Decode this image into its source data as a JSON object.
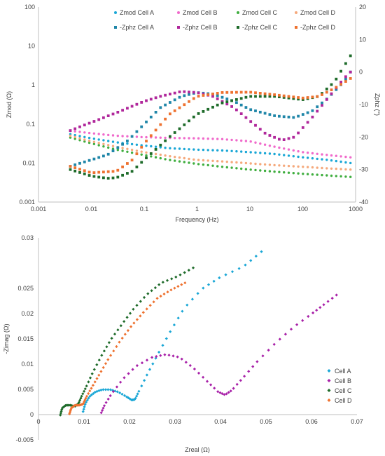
{
  "chart_data": [
    {
      "type": "scatter",
      "title": "",
      "xlabel": "Frequency (Hz)",
      "ylabel": "Zmod (Ω)",
      "y2label": "Zphz (°)",
      "x_scale": "log",
      "y_scale": "log",
      "xlim": [
        0.001,
        1000
      ],
      "ylim": [
        0.001,
        100
      ],
      "y2lim": [
        -40,
        20
      ],
      "xticks": [
        "0.001",
        "0.01",
        "0.1",
        "1",
        "10",
        "100",
        "1000"
      ],
      "yticks": [
        "0.001",
        "0.01",
        "0.1",
        "1",
        "10",
        "100"
      ],
      "y2ticks": [
        "-40",
        "-30",
        "-20",
        "-10",
        "0",
        "10",
        "20"
      ],
      "grid": false,
      "legend_position": "top",
      "series": [
        {
          "name": "Zmod Cell A",
          "marker": "circle",
          "color": "#1aa7d6",
          "axis": "left",
          "points": [
            [
              0.004,
              0.055
            ],
            [
              0.01,
              0.043
            ],
            [
              0.03,
              0.034
            ],
            [
              0.1,
              0.028
            ],
            [
              0.3,
              0.024
            ],
            [
              1,
              0.022
            ],
            [
              3,
              0.021
            ],
            [
              10,
              0.019
            ],
            [
              30,
              0.017
            ],
            [
              100,
              0.014
            ],
            [
              300,
              0.012
            ],
            [
              800,
              0.01
            ]
          ]
        },
        {
          "name": "Zmod Cell B",
          "marker": "circle",
          "color": "#f06acb",
          "axis": "left",
          "points": [
            [
              0.004,
              0.067
            ],
            [
              0.01,
              0.058
            ],
            [
              0.03,
              0.05
            ],
            [
              0.1,
              0.046
            ],
            [
              0.3,
              0.044
            ],
            [
              1,
              0.043
            ],
            [
              3,
              0.041
            ],
            [
              10,
              0.036
            ],
            [
              30,
              0.026
            ],
            [
              100,
              0.019
            ],
            [
              300,
              0.016
            ],
            [
              800,
              0.014
            ]
          ]
        },
        {
          "name": "Zmod Cell C",
          "marker": "circle",
          "color": "#3fae3f",
          "axis": "left",
          "points": [
            [
              0.004,
              0.045
            ],
            [
              0.01,
              0.032
            ],
            [
              0.03,
              0.022
            ],
            [
              0.1,
              0.016
            ],
            [
              0.3,
              0.012
            ],
            [
              1,
              0.0095
            ],
            [
              3,
              0.008
            ],
            [
              10,
              0.0068
            ],
            [
              30,
              0.006
            ],
            [
              100,
              0.0053
            ],
            [
              300,
              0.0048
            ],
            [
              800,
              0.0044
            ]
          ]
        },
        {
          "name": "Zmod Cell D",
          "marker": "circle",
          "color": "#f5a97c",
          "axis": "left",
          "points": [
            [
              0.004,
              0.05
            ],
            [
              0.01,
              0.036
            ],
            [
              0.03,
              0.026
            ],
            [
              0.1,
              0.019
            ],
            [
              0.3,
              0.015
            ],
            [
              1,
              0.012
            ],
            [
              3,
              0.011
            ],
            [
              10,
              0.0098
            ],
            [
              30,
              0.0088
            ],
            [
              100,
              0.008
            ],
            [
              300,
              0.0073
            ],
            [
              800,
              0.0068
            ]
          ]
        },
        {
          "name": "-Zphz Cell A",
          "marker": "square",
          "color": "#1f86a8",
          "axis": "right",
          "points": [
            [
              0.004,
              -29
            ],
            [
              0.01,
              -27
            ],
            [
              0.02,
              -25.5
            ],
            [
              0.05,
              -21
            ],
            [
              0.1,
              -16
            ],
            [
              0.2,
              -11
            ],
            [
              0.5,
              -7.5
            ],
            [
              1,
              -6.3
            ],
            [
              2,
              -6.8
            ],
            [
              5,
              -9
            ],
            [
              10,
              -11.5
            ],
            [
              30,
              -13.5
            ],
            [
              70,
              -14
            ],
            [
              150,
              -12
            ],
            [
              300,
              -8
            ],
            [
              600,
              -3
            ],
            [
              800,
              0
            ]
          ]
        },
        {
          "name": "-Zphz Cell B",
          "marker": "square",
          "color": "#b0279b",
          "axis": "right",
          "points": [
            [
              0.004,
              -18
            ],
            [
              0.01,
              -15.5
            ],
            [
              0.03,
              -12.5
            ],
            [
              0.1,
              -9
            ],
            [
              0.2,
              -7.5
            ],
            [
              0.5,
              -6
            ],
            [
              1,
              -6.3
            ],
            [
              2,
              -7.5
            ],
            [
              5,
              -11
            ],
            [
              10,
              -15
            ],
            [
              20,
              -19
            ],
            [
              40,
              -21
            ],
            [
              70,
              -20
            ],
            [
              150,
              -14
            ],
            [
              300,
              -8
            ],
            [
              600,
              -2
            ],
            [
              800,
              0
            ]
          ]
        },
        {
          "name": "-Zphz Cell C",
          "marker": "square",
          "color": "#1e6b2a",
          "axis": "right",
          "points": [
            [
              0.004,
              -30
            ],
            [
              0.01,
              -32
            ],
            [
              0.02,
              -32.7
            ],
            [
              0.03,
              -32.5
            ],
            [
              0.06,
              -30.5
            ],
            [
              0.1,
              -27
            ],
            [
              0.3,
              -20
            ],
            [
              1,
              -13
            ],
            [
              3,
              -9.5
            ],
            [
              10,
              -7.5
            ],
            [
              30,
              -7.5
            ],
            [
              100,
              -8.5
            ],
            [
              200,
              -7.5
            ],
            [
              400,
              -3
            ],
            [
              800,
              5
            ]
          ]
        },
        {
          "name": "-Zphz Cell D",
          "marker": "square",
          "color": "#ee7230",
          "axis": "right",
          "points": [
            [
              0.004,
              -29
            ],
            [
              0.01,
              -31
            ],
            [
              0.03,
              -30.5
            ],
            [
              0.06,
              -27
            ],
            [
              0.1,
              -22
            ],
            [
              0.3,
              -13
            ],
            [
              1,
              -7.5
            ],
            [
              3,
              -6.3
            ],
            [
              10,
              -6.2
            ],
            [
              30,
              -7
            ],
            [
              100,
              -8
            ],
            [
              200,
              -7.5
            ],
            [
              400,
              -5
            ],
            [
              800,
              -2
            ]
          ]
        }
      ]
    },
    {
      "type": "scatter",
      "title": "",
      "xlabel": "Zreal (Ω)",
      "ylabel": "-Zimag (Ω)",
      "xlim": [
        0,
        0.07
      ],
      "ylim": [
        -0.005,
        0.03
      ],
      "xticks": [
        "0",
        "0.01",
        "0.02",
        "0.03",
        "0.04",
        "0.05",
        "0.06",
        "0.07"
      ],
      "yticks": [
        "-0.005",
        "0",
        "0.005",
        "0.01",
        "0.015",
        "0.02",
        "0.025",
        "0.03"
      ],
      "grid": false,
      "legend_position": "right",
      "series": [
        {
          "name": "Cell A",
          "marker": "diamond",
          "color": "#1aa7d6",
          "points": [
            [
              0.0098,
              -0.0001
            ],
            [
              0.0103,
              0.0013
            ],
            [
              0.0112,
              0.0025
            ],
            [
              0.0125,
              0.0033
            ],
            [
              0.014,
              0.0037
            ],
            [
              0.0158,
              0.0037
            ],
            [
              0.0175,
              0.0033
            ],
            [
              0.0193,
              0.0025
            ],
            [
              0.0205,
              0.0019
            ],
            [
              0.0212,
              0.002
            ],
            [
              0.022,
              0.0033
            ],
            [
              0.024,
              0.0065
            ],
            [
              0.0262,
              0.0098
            ],
            [
              0.029,
              0.0138
            ],
            [
              0.032,
              0.0178
            ],
            [
              0.036,
              0.0212
            ],
            [
              0.04,
              0.0232
            ],
            [
              0.045,
              0.025
            ],
            [
              0.049,
              0.0276
            ]
          ]
        },
        {
          "name": "Cell B",
          "marker": "diamond",
          "color": "#a820a8",
          "points": [
            [
              0.0138,
              -0.0003
            ],
            [
              0.0145,
              0.001
            ],
            [
              0.016,
              0.0029
            ],
            [
              0.0185,
              0.0055
            ],
            [
              0.0215,
              0.0078
            ],
            [
              0.025,
              0.0093
            ],
            [
              0.028,
              0.0098
            ],
            [
              0.031,
              0.0093
            ],
            [
              0.034,
              0.0075
            ],
            [
              0.037,
              0.0052
            ],
            [
              0.0395,
              0.0033
            ],
            [
              0.041,
              0.0028
            ],
            [
              0.0425,
              0.0036
            ],
            [
              0.045,
              0.0058
            ],
            [
              0.048,
              0.0085
            ],
            [
              0.052,
              0.0117
            ],
            [
              0.056,
              0.0145
            ],
            [
              0.06,
              0.0168
            ],
            [
              0.0625,
              0.0183
            ],
            [
              0.0655,
              0.0201
            ]
          ]
        },
        {
          "name": "Cell C",
          "marker": "diamond",
          "color": "#1e6b2a",
          "points": [
            [
              0.0048,
              -0.0007
            ],
            [
              0.0052,
              0.0005
            ],
            [
              0.006,
              0.001
            ],
            [
              0.007,
              0.001
            ],
            [
              0.008,
              0.0008
            ],
            [
              0.0088,
              0.0013
            ],
            [
              0.0095,
              0.0026
            ],
            [
              0.0105,
              0.0042
            ],
            [
              0.012,
              0.0068
            ],
            [
              0.014,
              0.0098
            ],
            [
              0.016,
              0.0125
            ],
            [
              0.0185,
              0.0152
            ],
            [
              0.021,
              0.0178
            ],
            [
              0.024,
              0.0203
            ],
            [
              0.027,
              0.0222
            ],
            [
              0.0305,
              0.0233
            ],
            [
              0.034,
              0.0248
            ]
          ]
        },
        {
          "name": "Cell D",
          "marker": "diamond",
          "color": "#ee7230",
          "points": [
            [
              0.0068,
              -0.0005
            ],
            [
              0.0072,
              0.0005
            ],
            [
              0.008,
              0.001
            ],
            [
              0.009,
              0.001
            ],
            [
              0.0098,
              0.0012
            ],
            [
              0.0105,
              0.0024
            ],
            [
              0.0118,
              0.0042
            ],
            [
              0.0135,
              0.0065
            ],
            [
              0.0155,
              0.0092
            ],
            [
              0.018,
              0.0122
            ],
            [
              0.0205,
              0.0148
            ],
            [
              0.0232,
              0.0172
            ],
            [
              0.0262,
              0.0196
            ],
            [
              0.0292,
              0.021
            ],
            [
              0.0322,
              0.0222
            ]
          ]
        }
      ]
    }
  ]
}
